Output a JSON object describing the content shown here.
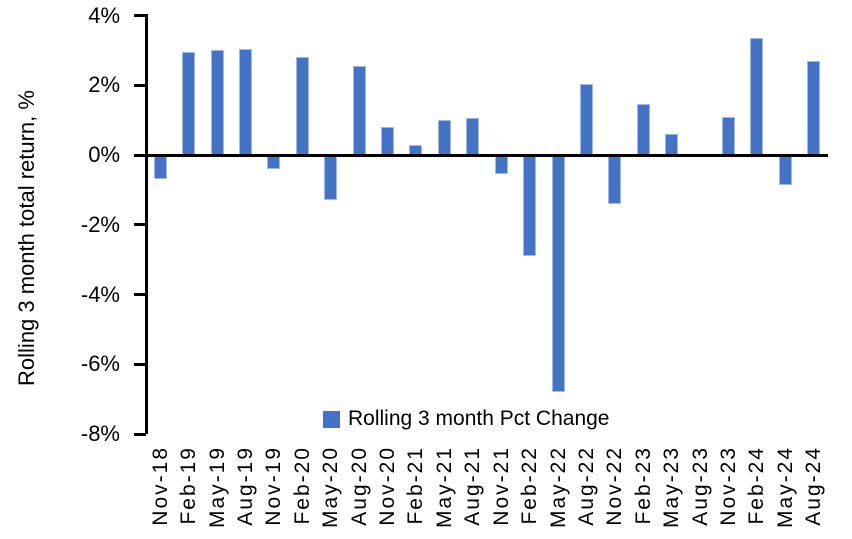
{
  "page": {
    "background": "#ffffff"
  },
  "colors": {
    "bar_fill": "#4472C4",
    "bar_edge": "#9fbbe5",
    "axis": "#000000",
    "text": "#000000"
  },
  "y_axis": {
    "title": "Rolling 3 month total return, %",
    "tick_labels": [
      "4%",
      "2%",
      "0%",
      "-2%",
      "-4%",
      "-6%",
      "-8%"
    ]
  },
  "legend": {
    "label": "Rolling 3 month Pct Change",
    "marker": "blue-square",
    "marker_color": "#4472C4"
  },
  "chart_data": {
    "type": "bar",
    "title": "",
    "xlabel": "",
    "ylabel": "Rolling 3 month total return, %",
    "ylim": [
      -8,
      4
    ],
    "ytick_step": 2,
    "ytick_format": "percent",
    "grid": false,
    "legend_position": "bottom-center",
    "bar_color": "#4472C4",
    "categories": [
      "Nov-18",
      "Feb-19",
      "May-19",
      "Aug-19",
      "Nov-19",
      "Feb-20",
      "May-20",
      "Aug-20",
      "Nov-20",
      "Feb-21",
      "May-21",
      "Aug-21",
      "Nov-21",
      "Feb-22",
      "May-22",
      "Aug-22",
      "Nov-22",
      "Feb-23",
      "May-23",
      "Aug-23",
      "Nov-23",
      "Feb-24",
      "May-24",
      "Aug-24"
    ],
    "series": [
      {
        "name": "Rolling 3 month Pct Change",
        "values": [
          -0.7,
          2.95,
          3.0,
          3.05,
          -0.4,
          2.8,
          -1.3,
          2.55,
          0.8,
          0.3,
          1.0,
          1.05,
          -0.55,
          -2.9,
          -6.8,
          2.05,
          -1.4,
          1.45,
          0.6,
          0.0,
          1.1,
          3.35,
          -0.85,
          2.7
        ]
      }
    ]
  }
}
